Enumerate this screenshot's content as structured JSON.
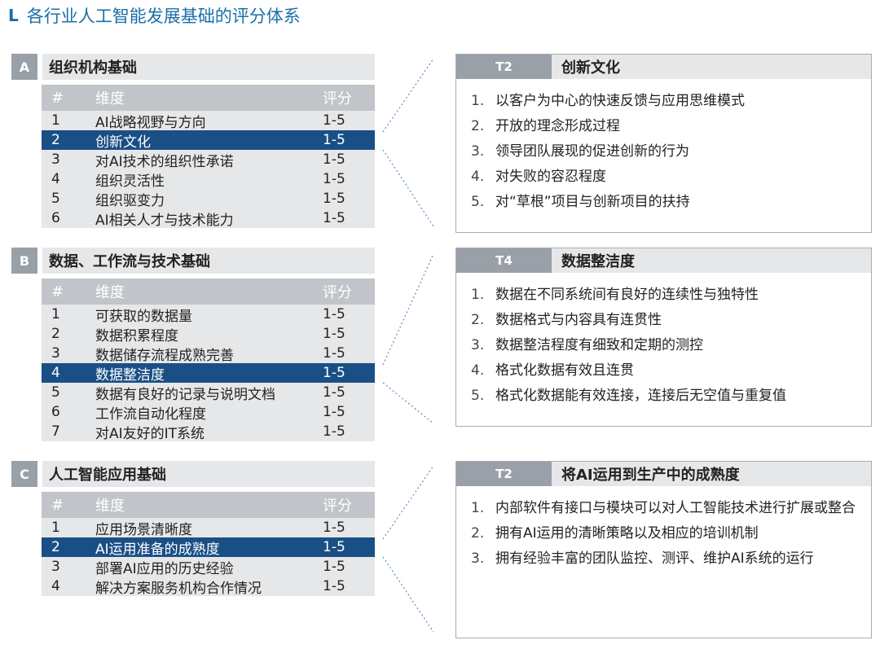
{
  "page_title": "各行业人工智能发展基础的评分体系",
  "page_title_mark": "L",
  "table_headers": {
    "num": "#",
    "dimension": "维度",
    "score": "评分"
  },
  "sections": [
    {
      "letter": "A",
      "title": "组织机构基础",
      "rows": [
        {
          "num": "1",
          "dimension": "AI战略视野与方向",
          "score": "1-5",
          "highlight": false
        },
        {
          "num": "2",
          "dimension": "创新文化",
          "score": "1-5",
          "highlight": true
        },
        {
          "num": "3",
          "dimension": "对AI技术的组织性承诺",
          "score": "1-5",
          "highlight": false
        },
        {
          "num": "4",
          "dimension": "组织灵活性",
          "score": "1-5",
          "highlight": false
        },
        {
          "num": "5",
          "dimension": "组织驱变力",
          "score": "1-5",
          "highlight": false
        },
        {
          "num": "6",
          "dimension": "AI相关人才与技术能力",
          "score": "1-5",
          "highlight": false
        }
      ]
    },
    {
      "letter": "B",
      "title": "数据、工作流与技术基础",
      "rows": [
        {
          "num": "1",
          "dimension": "可获取的数据量",
          "score": "1-5",
          "highlight": false
        },
        {
          "num": "2",
          "dimension": "数据积累程度",
          "score": "1-5",
          "highlight": false
        },
        {
          "num": "3",
          "dimension": "数据储存流程成熟完善",
          "score": "1-5",
          "highlight": false
        },
        {
          "num": "4",
          "dimension": "数据整洁度",
          "score": "1-5",
          "highlight": true
        },
        {
          "num": "5",
          "dimension": "数据有良好的记录与说明文档",
          "score": "1-5",
          "highlight": false
        },
        {
          "num": "6",
          "dimension": "工作流自动化程度",
          "score": "1-5",
          "highlight": false
        },
        {
          "num": "7",
          "dimension": "对AI友好的IT系统",
          "score": "1-5",
          "highlight": false
        }
      ]
    },
    {
      "letter": "C",
      "title": "人工智能应用基础",
      "rows": [
        {
          "num": "1",
          "dimension": "应用场景清晰度",
          "score": "1-5",
          "highlight": false
        },
        {
          "num": "2",
          "dimension": "AI运用准备的成熟度",
          "score": "1-5",
          "highlight": true
        },
        {
          "num": "3",
          "dimension": "部署AI应用的历史经验",
          "score": "1-5",
          "highlight": false
        },
        {
          "num": "4",
          "dimension": "解决方案服务机构合作情况",
          "score": "1-5",
          "highlight": false
        }
      ]
    }
  ],
  "cards": [
    {
      "tag": "T2",
      "title": "创新文化",
      "items": [
        {
          "num": "1.",
          "text": "以客户为中心的快速反馈与应用思维模式"
        },
        {
          "num": "2.",
          "text": "开放的理念形成过程"
        },
        {
          "num": "3.",
          "text": "领导团队展现的促进创新的行为"
        },
        {
          "num": "4.",
          "text": "对失败的容忍程度"
        },
        {
          "num": "5.",
          "text": "对“草根”项目与创新项目的扶持"
        }
      ]
    },
    {
      "tag": "T4",
      "title": "数据整洁度",
      "items": [
        {
          "num": "1.",
          "text": "数据在不同系统间有良好的连续性与独特性"
        },
        {
          "num": "2.",
          "text": "数据格式与内容具有连贯性"
        },
        {
          "num": "3.",
          "text": "数据整洁程度有细致和定期的测控"
        },
        {
          "num": "4.",
          "text": "格式化数据有效且连贯"
        },
        {
          "num": "5.",
          "text": "格式化数据能有效连接，连接后无空值与重复值"
        }
      ]
    },
    {
      "tag": "T2",
      "title": "将AI运用到生产中的成熟度",
      "items": [
        {
          "num": "1.",
          "text": "内部软件有接口与模块可以对人工智能技术进行扩展或整合"
        },
        {
          "num": "2.",
          "text": "拥有AI运用的清晰策略以及相应的培训机制"
        },
        {
          "num": "3.",
          "text": "拥有经验丰富的团队监控、测评、维护AI系统的运行"
        }
      ]
    }
  ],
  "colors": {
    "accent": "#1a6fa8",
    "highlight_row": "#1a4f86",
    "gray_block": "#9aa0a8",
    "light_gray": "#e6e7e9",
    "header_gray": "#c1c4c9"
  }
}
